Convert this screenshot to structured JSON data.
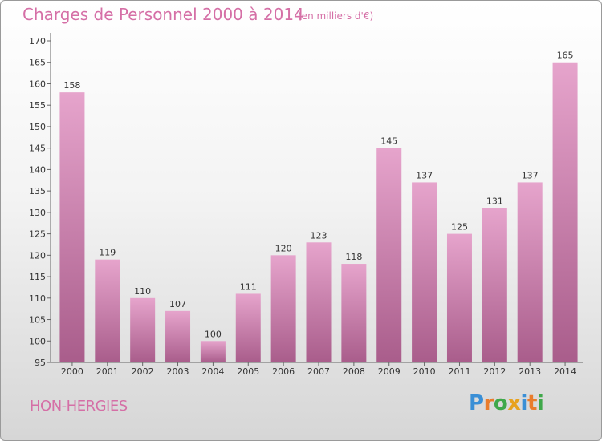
{
  "title": "Charges de Personnel 2000 à 2014",
  "subtitle": "(en milliers d'€)",
  "commune": "HON-HERGIES",
  "logo": {
    "text": "Proxiti",
    "letters": [
      {
        "ch": "P",
        "color": "#3a8fd6"
      },
      {
        "ch": "r",
        "color": "#e97c2c"
      },
      {
        "ch": "o",
        "color": "#3fa84a"
      },
      {
        "ch": "x",
        "color": "#e7a21f"
      },
      {
        "ch": "i",
        "color": "#3a8fd6"
      },
      {
        "ch": "t",
        "color": "#e97c2c"
      },
      {
        "ch": "i",
        "color": "#3fa84a"
      }
    ]
  },
  "colors": {
    "accent": "#d56fa6",
    "bar_top": "#e6a4cc",
    "bar_bottom": "#a95d8b"
  },
  "chart_data": {
    "type": "bar",
    "categories": [
      "2000",
      "2001",
      "2002",
      "2003",
      "2004",
      "2005",
      "2006",
      "2007",
      "2008",
      "2009",
      "2010",
      "2011",
      "2012",
      "2013",
      "2014"
    ],
    "values": [
      158,
      119,
      110,
      107,
      100,
      111,
      120,
      123,
      118,
      145,
      137,
      125,
      131,
      137,
      165
    ],
    "ylim": [
      95,
      170
    ],
    "yticks": [
      95,
      100,
      105,
      110,
      115,
      120,
      125,
      130,
      135,
      140,
      145,
      150,
      155,
      160,
      165,
      170
    ],
    "grid": false,
    "data_labels": true
  }
}
